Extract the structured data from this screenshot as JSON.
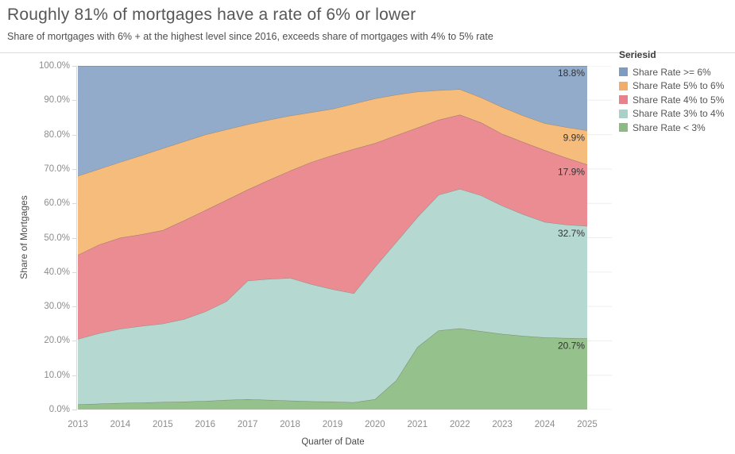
{
  "header": {
    "title": "Roughly 81% of mortgages have a rate of 6% or lower",
    "subtitle": "Share of mortgages with 6% + at the highest level since 2016, exceeds share of mortgages with 4% to 5% rate"
  },
  "y_axis": {
    "title": "Share of Mortgages",
    "tick_labels": [
      "0.0%",
      "10.0%",
      "20.0%",
      "30.0%",
      "40.0%",
      "50.0%",
      "60.0%",
      "70.0%",
      "80.0%",
      "90.0%",
      "100.0%"
    ]
  },
  "x_axis": {
    "title": "Quarter of Date",
    "tick_labels": [
      "2013",
      "2014",
      "2015",
      "2016",
      "2017",
      "2018",
      "2019",
      "2020",
      "2021",
      "2022",
      "2023",
      "2024",
      "2025"
    ]
  },
  "legend": {
    "title": "Seriesid",
    "items": [
      {
        "label": "Share Rate >= 6%",
        "color": "#7d9cc4"
      },
      {
        "label": "Share Rate 5% to 6%",
        "color": "#f2ad68"
      },
      {
        "label": "Share Rate 4% to 5%",
        "color": "#e5828b"
      },
      {
        "label": "Share Rate 3% to 4%",
        "color": "#a9d1c9"
      },
      {
        "label": "Share Rate < 3%",
        "color": "#8bba82"
      }
    ]
  },
  "chart_data": {
    "type": "area",
    "stacked": true,
    "title": "Roughly 81% of mortgages have a rate of 6% or lower",
    "xlabel": "Quarter of Date",
    "ylabel": "Share of Mortgages",
    "xlim": [
      2013,
      2025
    ],
    "ylim": [
      0,
      100
    ],
    "y_unit": "percent",
    "grid": "horizontal",
    "legend_position": "right",
    "x": [
      2013,
      2013.5,
      2014,
      2014.5,
      2015,
      2015.5,
      2016,
      2016.5,
      2017,
      2017.5,
      2018,
      2018.5,
      2019,
      2019.5,
      2020,
      2020.5,
      2021,
      2021.5,
      2022,
      2022.5,
      2023,
      2023.5,
      2024,
      2024.5,
      2025
    ],
    "series_note": "series listed bottom-to-top of the stack; values are each band's share in %",
    "series": [
      {
        "name": "Share Rate < 3%",
        "color": "#94c18c",
        "last_value_label": "20.7%",
        "values": [
          1.5,
          1.7,
          1.9,
          2.0,
          2.2,
          2.3,
          2.5,
          2.8,
          3.0,
          2.8,
          2.6,
          2.4,
          2.3,
          2.1,
          3.0,
          8.5,
          18.2,
          23.0,
          23.6,
          22.8,
          22.0,
          21.4,
          21.0,
          20.8,
          20.7
        ]
      },
      {
        "name": "Share Rate 3% to 4%",
        "color": "#b5d8d1",
        "last_value_label": "32.7%",
        "values": [
          19.0,
          20.5,
          21.6,
          22.3,
          22.8,
          24.0,
          26.0,
          28.7,
          34.5,
          35.2,
          35.7,
          34.1,
          32.7,
          31.7,
          38.5,
          40.2,
          37.8,
          39.5,
          40.6,
          39.5,
          37.3,
          35.4,
          33.6,
          33.0,
          32.7
        ]
      },
      {
        "name": "Share Rate 4% to 5%",
        "color": "#ea8c92",
        "last_value_label": "17.9%",
        "values": [
          24.5,
          25.8,
          26.5,
          26.7,
          27.2,
          28.7,
          29.5,
          29.5,
          26.5,
          28.8,
          31.2,
          35.5,
          39.0,
          42.0,
          36.0,
          31.1,
          26.0,
          21.8,
          21.6,
          21.2,
          20.9,
          21.0,
          20.9,
          19.5,
          17.9
        ]
      },
      {
        "name": "Share Rate 5% to 6%",
        "color": "#f6bc7b",
        "last_value_label": "9.9%",
        "values": [
          23.0,
          22.0,
          22.0,
          23.0,
          23.8,
          23.0,
          22.0,
          20.5,
          19.0,
          17.5,
          16.0,
          14.5,
          13.5,
          13.2,
          13.0,
          11.8,
          10.5,
          8.6,
          7.4,
          7.3,
          7.8,
          7.7,
          7.8,
          8.9,
          9.9
        ]
      },
      {
        "name": "Share Rate >= 6%",
        "color": "#92abca",
        "last_value_label": "18.8%",
        "values": [
          32.0,
          30.0,
          28.0,
          26.0,
          24.0,
          22.0,
          20.0,
          18.5,
          17.0,
          15.7,
          14.5,
          13.5,
          12.5,
          11.0,
          9.5,
          8.4,
          7.5,
          7.1,
          6.8,
          9.2,
          12.0,
          14.5,
          16.7,
          17.8,
          18.8
        ]
      }
    ]
  },
  "colors": {
    "value_label_text": "#333333",
    "grid_line": "#ededed",
    "axis_line": "#d9d9d9",
    "band_edge_stroke": "rgba(102,92,84,0.6)"
  }
}
